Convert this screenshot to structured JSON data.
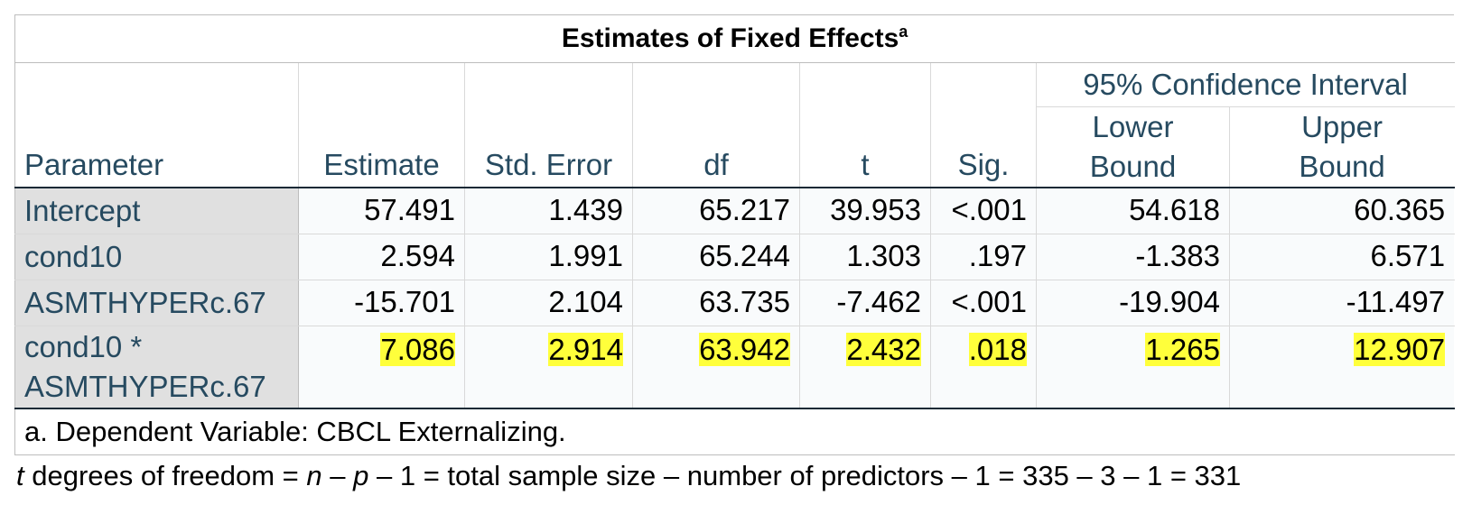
{
  "table": {
    "title": "Estimates of Fixed Effects",
    "title_superscript": "a",
    "headers": {
      "parameter": "Parameter",
      "estimate": "Estimate",
      "std_error": "Std. Error",
      "df": "df",
      "t": "t",
      "sig": "Sig.",
      "ci_group": "95% Confidence Interval",
      "lower_line1": "Lower",
      "lower_line2": "Bound",
      "upper_line1": "Upper",
      "upper_line2": "Bound"
    },
    "rows": [
      {
        "parameter_line1": "Intercept",
        "parameter_line2": "",
        "estimate": "57.491",
        "std_error": "1.439",
        "df": "65.217",
        "t": "39.953",
        "sig": "<.001",
        "lower": "54.618",
        "upper": "60.365",
        "highlighted": false
      },
      {
        "parameter_line1": "cond10",
        "parameter_line2": "",
        "estimate": "2.594",
        "std_error": "1.991",
        "df": "65.244",
        "t": "1.303",
        "sig": ".197",
        "lower": "-1.383",
        "upper": "6.571",
        "highlighted": false
      },
      {
        "parameter_line1": "ASMTHYPERc.67",
        "parameter_line2": "",
        "estimate": "-15.701",
        "std_error": "2.104",
        "df": "63.735",
        "t": "-7.462",
        "sig": "<.001",
        "lower": "-19.904",
        "upper": "-11.497",
        "highlighted": false
      },
      {
        "parameter_line1": "cond10 *",
        "parameter_line2": "ASMTHYPERc.67",
        "estimate": "7.086",
        "std_error": "2.914",
        "df": "63.942",
        "t": "2.432",
        "sig": ".018",
        "lower": "1.265",
        "upper": "12.907",
        "highlighted": true
      }
    ],
    "footnote": "a. Dependent Variable: CBCL Externalizing."
  },
  "note": {
    "t_var": "t",
    "part1": " degrees of freedom = ",
    "n_var": "n",
    "part2": " – ",
    "p_var": "p",
    "part3": " – 1 = total sample size – number of predictors – 1 = 335 – 3 – 1 = 331"
  },
  "colors": {
    "header_text": "#264a60",
    "row_label_bg": "#e0e0e0",
    "highlight": "#ffff3b"
  }
}
